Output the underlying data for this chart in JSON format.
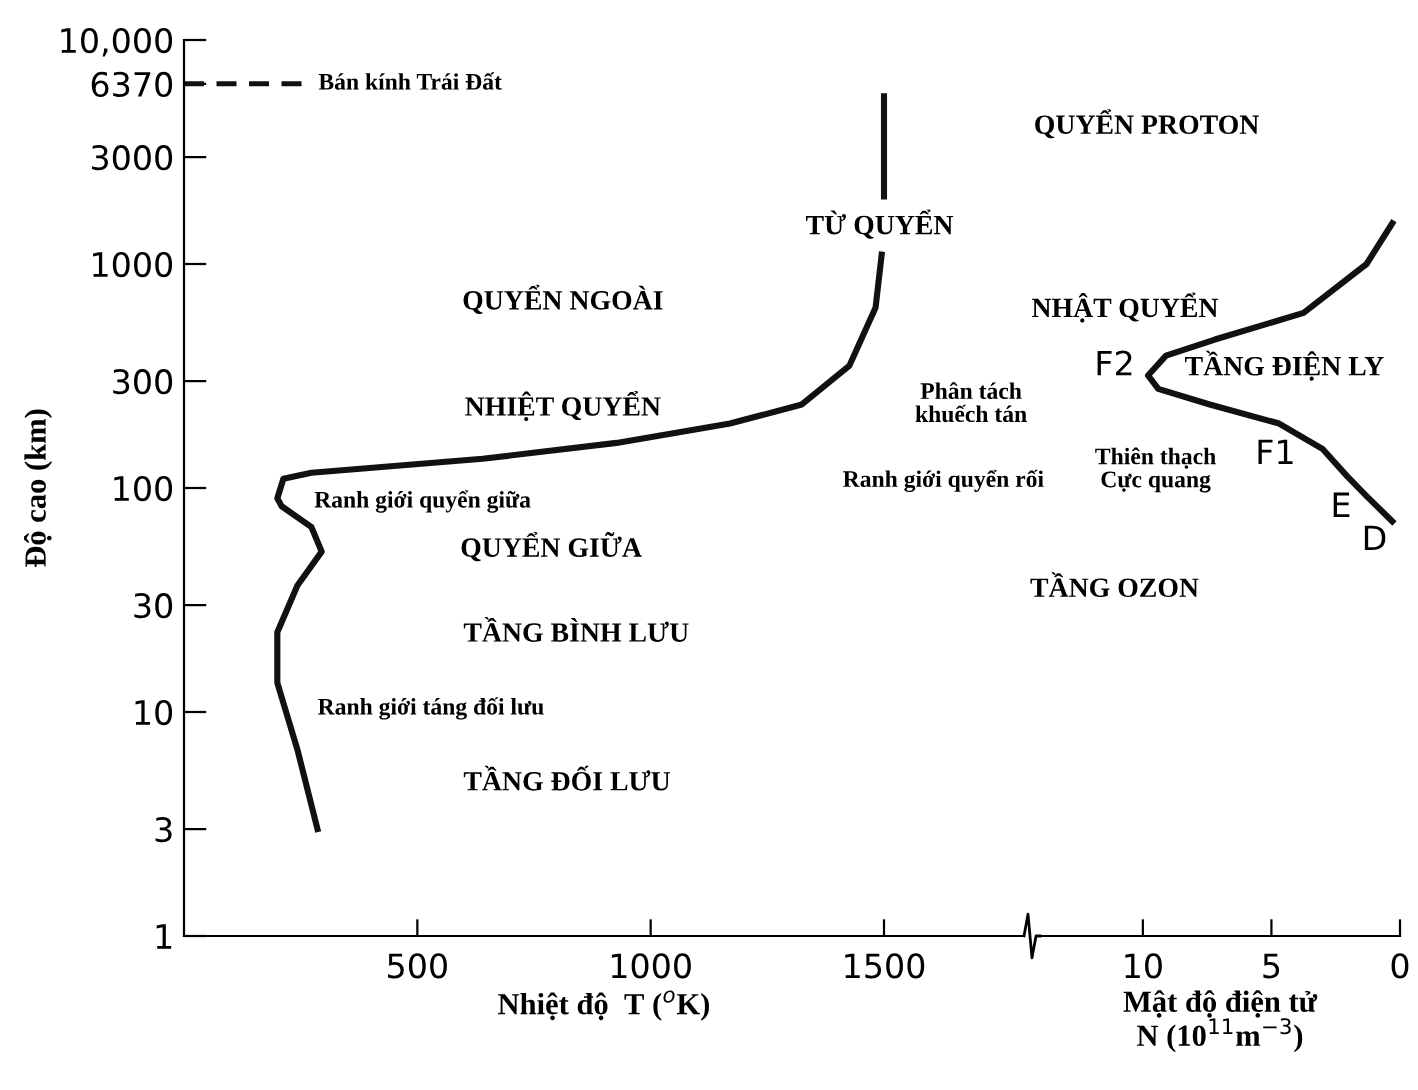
{
  "chart_data": [
    {
      "type": "line",
      "xlabel": "Nhiệt độ  T ($^{o}$K)",
      "ylabel": "Độ cao (km)",
      "log": "y",
      "xlim": [
        0,
        1800
      ],
      "xticks": [
        500,
        1000,
        1500
      ],
      "ylim": [
        1,
        10000
      ],
      "yticks": [
        1,
        3,
        10,
        30,
        100,
        300,
        1000,
        3000,
        {
          "value": 6370,
          "label": "6370"
        },
        {
          "value": 10000,
          "label": "10,000"
        }
      ],
      "grid": false,
      "marker": "none",
      "line_style": "solid",
      "series": [
        {
          "color": "#111111",
          "x": [
            286,
            243,
            200,
            200,
            243,
            295,
            273,
            209,
            200,
            213,
            273,
            640,
            927,
            1170,
            1324,
            1426,
            1482,
            1495,
            null,
            1500,
            1500
          ],
          "values": [
            3,
            6.8,
            13.5,
            22.7,
            36.7,
            52,
            67,
            83,
            90,
            110,
            117,
            135,
            159,
            194,
            236,
            352,
            640,
            1100,
            null,
            2000,
            5600
          ]
        }
      ],
      "ref_lines": [
        {
          "axis": "y",
          "value": 6370,
          "label": "Bán kính Trái Đất",
          "line_style": "dashed",
          "color": "#111111"
        }
      ],
      "annotations": [
        "QUYỂN NGOÀI",
        "NHIỆT QUYỂN",
        "Ranh giới quyển giữa",
        "QUYỂN GIỮA",
        "TẦNG BÌNH LƯU",
        "Ranh giới táng đối lưu",
        "TẦNG ĐỐI LƯU",
        "TỪ QUYỂN",
        "Phân tách\nkhuếch tán",
        "Ranh giới quyển rối"
      ]
    },
    {
      "type": "line",
      "xlabel": "Mật độ điện tử\nN (10$^{11}$m$^{−3}$)",
      "log": "y",
      "xlim": [
        14,
        0
      ],
      "xticks": [
        10,
        5,
        0
      ],
      "ylim": [
        1,
        10000
      ],
      "tick_labels": "x",
      "grid": false,
      "marker": "none",
      "line_style": "solid",
      "series": [
        {
          "color": "#111111",
          "x": [
            0.3,
            1.3,
            3.75,
            7.2,
            9.1,
            9.8,
            9.4,
            7.4,
            4.7,
            3.0,
            2.06,
            1.3,
            0.3
          ],
          "values": [
            1520,
            1000,
            605,
            460,
            390,
            318,
            277,
            236,
            194,
            149,
            113,
            92,
            71
          ]
        }
      ],
      "annotations": [
        "QUYỂN PROTON",
        "NHẬT QUYỂN",
        "F2",
        "TẦNG ĐIỆN LY",
        "Thiên thạch\nCực quang",
        "F1",
        "E",
        "D",
        "TẦNG OZON"
      ]
    }
  ]
}
